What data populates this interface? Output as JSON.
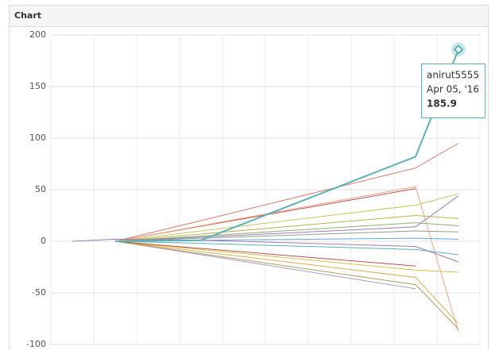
{
  "chart_data": {
    "type": "line",
    "title": "Chart",
    "x": [
      0.5,
      1.5,
      3.5,
      8.5,
      9.5
    ],
    "xlim": [
      0,
      10
    ],
    "ylim": [
      -100,
      200
    ],
    "yticks": [
      -100,
      -50,
      0,
      50,
      100,
      150,
      200
    ],
    "grid": true,
    "series": [
      {
        "name": "anirut5555",
        "color": "#5ab4b4",
        "values": [
          null,
          0,
          1,
          82,
          185.9
        ]
      },
      {
        "color": "#c0504d",
        "values": [
          null,
          0,
          14.6,
          51,
          null
        ]
      },
      {
        "color": "#e07b6a",
        "values": [
          null,
          0,
          20,
          71,
          95
        ]
      },
      {
        "color": "#f4a582",
        "values": [
          null,
          0,
          15,
          53,
          -88
        ]
      },
      {
        "color": "#c8c85a",
        "values": [
          null,
          0,
          10,
          35,
          46
        ]
      },
      {
        "color": "#b5b84e",
        "values": [
          null,
          0,
          7,
          25,
          22
        ]
      },
      {
        "color": "#8bb174",
        "values": [
          null,
          0,
          5,
          18,
          15
        ]
      },
      {
        "color": "#9e7bb5",
        "values": [
          null,
          0,
          4,
          14,
          44
        ]
      },
      {
        "color": "#6aa5d6",
        "values": [
          null,
          0,
          1,
          3,
          2
        ]
      },
      {
        "color": "#999999",
        "values": [
          null,
          0,
          3,
          10,
          9
        ]
      },
      {
        "color": "#d6c24a",
        "values": [
          null,
          0,
          -8,
          -28,
          -30
        ]
      },
      {
        "color": "#e0b050",
        "values": [
          null,
          0,
          -10,
          -35,
          -80
        ]
      },
      {
        "color": "#b09cc8",
        "values": [
          null,
          0,
          -13,
          -46,
          null
        ]
      },
      {
        "color": "#c0504d",
        "values": [
          null,
          0,
          -7,
          -24,
          null
        ]
      },
      {
        "color": "#a8a060",
        "values": [
          null,
          0,
          -12,
          -42,
          -85
        ]
      },
      {
        "color": "#5ab4b4",
        "values": [
          null,
          0,
          -2,
          -8,
          -13
        ]
      },
      {
        "color": "#9e7bb5",
        "values": [
          0,
          2,
          1,
          -5,
          -20
        ]
      }
    ],
    "tooltip": {
      "date": "Apr 05, '16"
    }
  }
}
